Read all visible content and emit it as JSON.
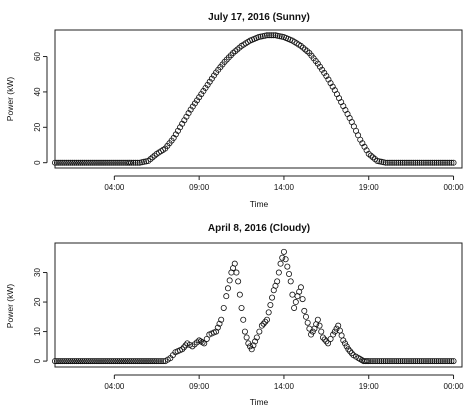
{
  "chart_data": [
    {
      "type": "scatter",
      "title": "July 17, 2016 (Sunny)",
      "xlabel": "Time",
      "ylabel": "Power (kW)",
      "x_ticks": [
        "04:00",
        "09:00",
        "14:00",
        "19:00",
        "00:00"
      ],
      "x_tick_hours": [
        4,
        9,
        14,
        19,
        24
      ],
      "xlim_hours": [
        0.5,
        24.5
      ],
      "y_ticks": [
        0,
        20,
        40,
        60
      ],
      "ylim": [
        -3,
        75
      ],
      "x_unit": "hour",
      "series": [
        {
          "x": [
            0.5,
            2.0,
            3.5,
            4.8,
            5.0,
            5.5,
            6.0,
            6.5,
            7.0,
            7.5,
            8.0,
            8.5,
            9.0,
            9.5,
            10.0,
            10.5,
            11.0,
            11.5,
            12.0,
            12.5,
            13.0,
            13.5,
            14.0,
            14.5,
            15.0,
            15.5,
            16.0,
            16.5,
            17.0,
            17.5,
            18.0,
            18.5,
            19.0,
            19.5,
            20.0,
            21.0,
            22.0,
            23.0,
            24.0
          ],
          "y": [
            0,
            0,
            0,
            0,
            0,
            0,
            1,
            5,
            8,
            14,
            22,
            30,
            37,
            44,
            51,
            57,
            62,
            66,
            69,
            71,
            72,
            72,
            71,
            69,
            66,
            62,
            56,
            49,
            41,
            32,
            23,
            13,
            5,
            1,
            0,
            0,
            0,
            0,
            0
          ]
        }
      ]
    },
    {
      "type": "scatter",
      "title": "April 8, 2016 (Cloudy)",
      "xlabel": "Time",
      "ylabel": "Power (kW)",
      "x_ticks": [
        "04:00",
        "09:00",
        "14:00",
        "19:00",
        "00:00"
      ],
      "x_tick_hours": [
        4,
        9,
        14,
        19,
        24
      ],
      "xlim_hours": [
        0.5,
        24.5
      ],
      "y_ticks": [
        0,
        10,
        20,
        30
      ],
      "ylim": [
        -2,
        40
      ],
      "x_unit": "hour",
      "series": [
        {
          "x": [
            0.5,
            2.0,
            3.5,
            5.0,
            6.5,
            7.0,
            7.3,
            7.6,
            8.0,
            8.3,
            8.6,
            9.0,
            9.3,
            9.6,
            10.0,
            10.3,
            10.6,
            10.9,
            11.1,
            11.3,
            11.5,
            11.7,
            11.9,
            12.1,
            12.4,
            12.7,
            13.0,
            13.2,
            13.4,
            13.6,
            13.8,
            14.0,
            14.2,
            14.4,
            14.6,
            14.8,
            15.0,
            15.2,
            15.4,
            15.6,
            15.8,
            16.0,
            16.3,
            16.6,
            16.9,
            17.2,
            17.5,
            17.8,
            18.1,
            18.4,
            18.7,
            19.0,
            19.5,
            20.0,
            21.0,
            22.0,
            23.0,
            24.0
          ],
          "y": [
            0,
            0,
            0,
            0,
            0,
            0,
            1,
            3,
            4,
            6,
            5,
            7,
            6,
            9,
            10,
            14,
            22,
            30,
            33,
            27,
            18,
            10,
            6,
            4,
            8,
            12,
            14,
            19,
            24,
            27,
            33,
            37,
            32,
            27,
            18,
            22,
            25,
            17,
            13,
            9,
            11,
            14,
            8,
            6,
            9,
            12,
            7,
            4,
            2,
            1,
            0,
            0,
            0,
            0,
            0,
            0,
            0,
            0
          ]
        }
      ]
    }
  ]
}
